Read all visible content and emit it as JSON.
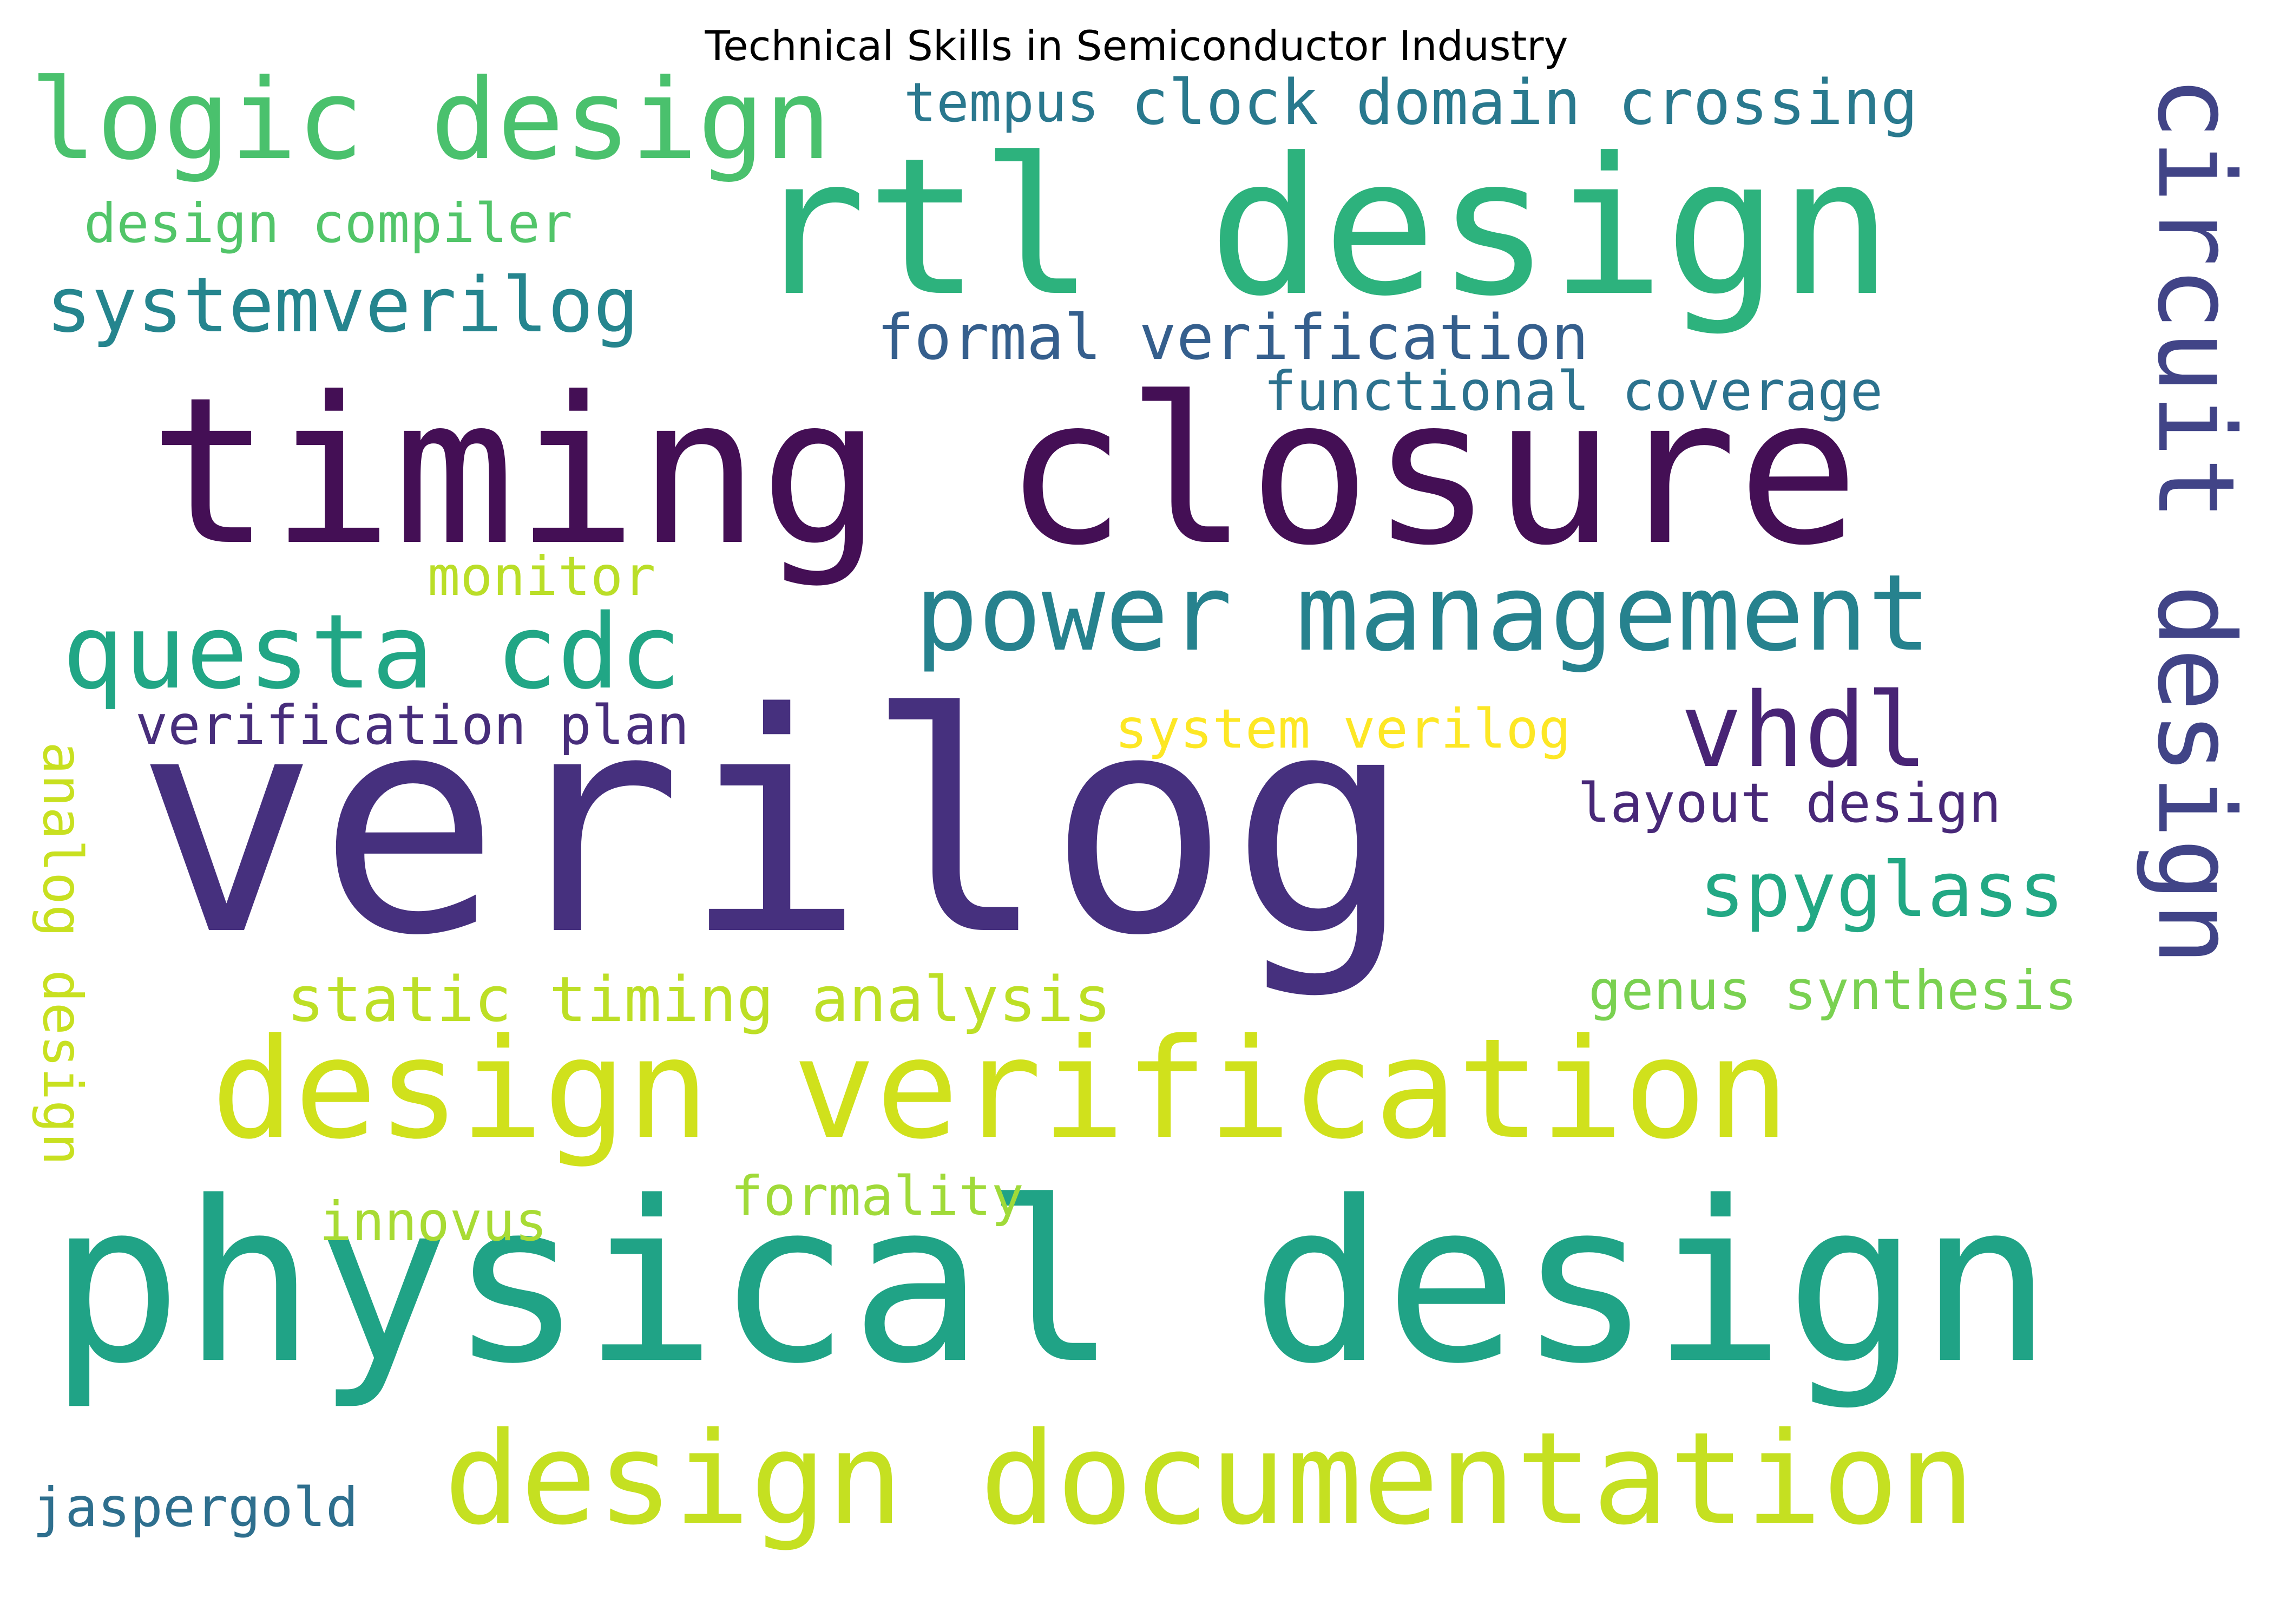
{
  "figure": {
    "title": "Technical Skills in Semiconductor Industry"
  },
  "word_cloud": {
    "words": [
      {
        "text": "verilog",
        "color": "#46307e",
        "rotated": false
      },
      {
        "text": "physical design",
        "color": "#20a386",
        "rotated": false
      },
      {
        "text": "timing closure",
        "color": "#440f55",
        "rotated": false
      },
      {
        "text": "rtl design",
        "color": "#2db27d",
        "rotated": false
      },
      {
        "text": "design verification",
        "color": "#d0e11c",
        "rotated": false
      },
      {
        "text": "design documentation",
        "color": "#c5e021",
        "rotated": false
      },
      {
        "text": "logic design",
        "color": "#4ac16d",
        "rotated": false
      },
      {
        "text": "power management",
        "color": "#26828e",
        "rotated": false
      },
      {
        "text": "circuit design",
        "color": "#414487",
        "rotated": true
      },
      {
        "text": "questa cdc",
        "color": "#21a685",
        "rotated": false
      },
      {
        "text": "vhdl",
        "color": "#482475",
        "rotated": false
      },
      {
        "text": "systemverilog",
        "color": "#25858e",
        "rotated": false
      },
      {
        "text": "spyglass",
        "color": "#22a884",
        "rotated": false
      },
      {
        "text": "clock domain crossing",
        "color": "#29798e",
        "rotated": false
      },
      {
        "text": "formal verification",
        "color": "#355f8d",
        "rotated": false
      },
      {
        "text": "static timing analysis",
        "color": "#bddf26",
        "rotated": false
      },
      {
        "text": "functional coverage",
        "color": "#2c728e",
        "rotated": false
      },
      {
        "text": "design compiler",
        "color": "#52c569",
        "rotated": false
      },
      {
        "text": "genus synthesis",
        "color": "#7ad151",
        "rotated": false
      },
      {
        "text": "system verilog",
        "color": "#fde725",
        "rotated": false
      },
      {
        "text": "verification plan",
        "color": "#472d7b",
        "rotated": false
      },
      {
        "text": "layout design",
        "color": "#482878",
        "rotated": false
      },
      {
        "text": "formality",
        "color": "#a0da39",
        "rotated": false
      },
      {
        "text": "innovus",
        "color": "#a8db34",
        "rotated": false
      },
      {
        "text": "tempus",
        "color": "#2a788e",
        "rotated": false
      },
      {
        "text": "jaspergold",
        "color": "#2e6f8e",
        "rotated": false
      },
      {
        "text": "monitor",
        "color": "#bade28",
        "rotated": false
      },
      {
        "text": "analog design",
        "color": "#c8e020",
        "rotated": true
      }
    ]
  }
}
